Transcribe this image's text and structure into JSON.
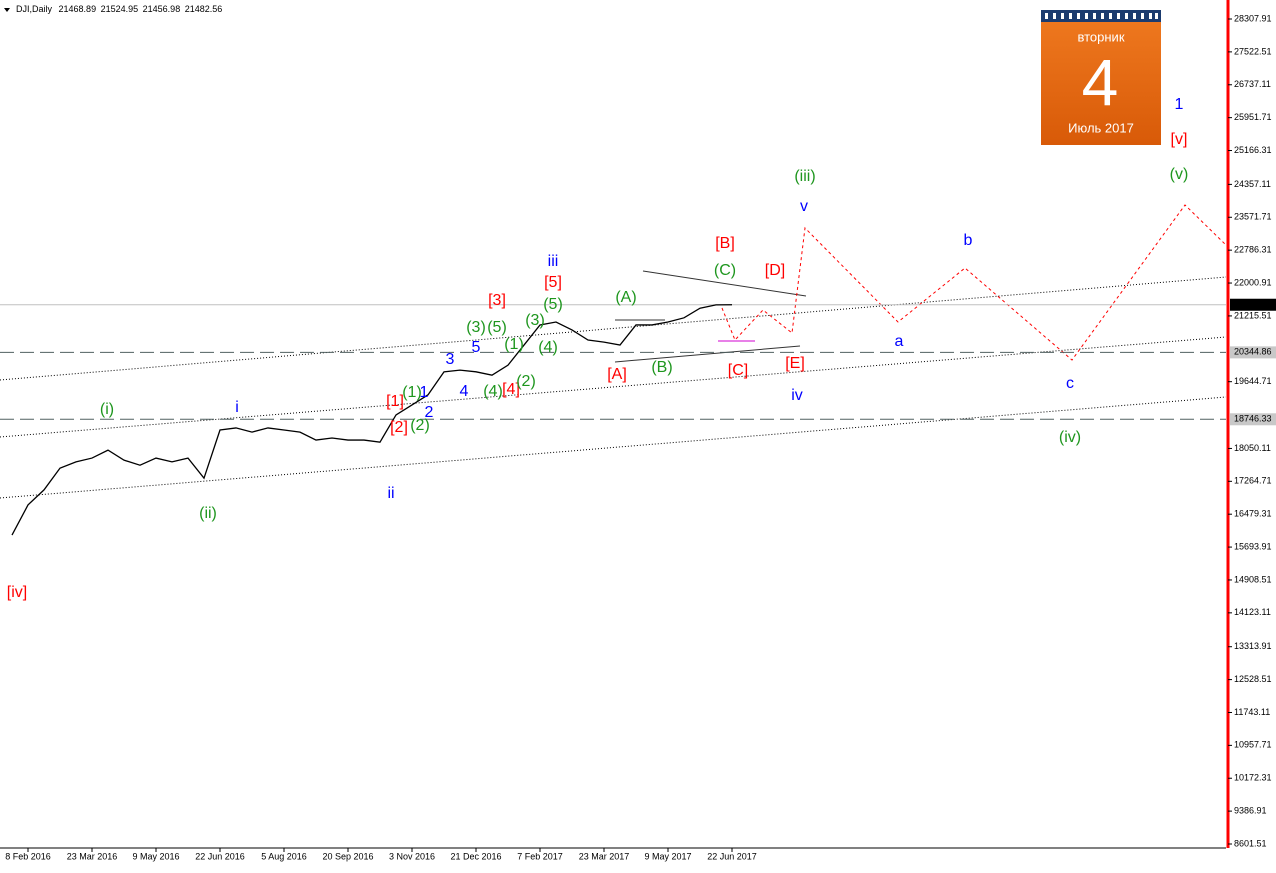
{
  "chart_data": {
    "type": "line",
    "header": {
      "symbol": "DJI,Daily",
      "open": 21468.89,
      "high": 21524.95,
      "low": 21456.98,
      "close": 21482.56
    },
    "categories": [
      null,
      "8 Feb 2016",
      null,
      null,
      null,
      "23 Mar 2016",
      null,
      null,
      null,
      "9 May 2016",
      null,
      null,
      null,
      "22 Jun 2016",
      null,
      null,
      null,
      "5 Aug 2016",
      null,
      null,
      null,
      "20 Sep 2016",
      null,
      null,
      null,
      "3 Nov 2016",
      null,
      null,
      null,
      "21 Dec 2016",
      null,
      null,
      null,
      "7 Feb 2017",
      null,
      null,
      null,
      "23 Mar 2017",
      null,
      null,
      null,
      "9 May 2017",
      null,
      null,
      null,
      "22 Jun 2017"
    ],
    "values": [
      15980,
      16700,
      17060,
      17580,
      17730,
      17820,
      18010,
      17770,
      17650,
      17820,
      17730,
      17820,
      17340,
      18490,
      18540,
      18440,
      18540,
      18490,
      18440,
      18250,
      18300,
      18250,
      18250,
      18200,
      18850,
      19090,
      19330,
      19880,
      19920,
      19880,
      19800,
      20040,
      20520,
      21000,
      21070,
      20880,
      20640,
      20590,
      20520,
      21000,
      21000,
      21070,
      21170,
      21400,
      21480,
      21482.56
    ],
    "color": "#000000",
    "ylim": [
      8506,
      28690
    ],
    "yticks": [
      28307.91,
      27522.51,
      26737.11,
      25951.71,
      25166.31,
      24357.11,
      23571.71,
      22786.31,
      22000.91,
      21215.51,
      19644.71,
      18050.11,
      17264.71,
      16479.31,
      15693.91,
      14908.51,
      14123.11,
      13313.91,
      12528.51,
      11743.11,
      10957.71,
      10172.31,
      9386.91,
      8601.51
    ],
    "levels": [
      {
        "value": 21482.56,
        "style": "current"
      },
      {
        "value": 20344.86,
        "style": "dashed"
      },
      {
        "value": 18746.33,
        "style": "dashed"
      }
    ],
    "annotations": [
      {
        "text": "[iv]",
        "color": "#ff0000"
      },
      {
        "text": "(i)",
        "color": "#1e961e"
      },
      {
        "text": "(ii)",
        "color": "#1e961e"
      },
      {
        "text": "i",
        "color": "#0000ff"
      },
      {
        "text": "ii",
        "color": "#0000ff"
      },
      {
        "text": "[1]",
        "color": "#ff0000"
      },
      {
        "text": "[2]",
        "color": "#ff0000"
      },
      {
        "text": "(1)",
        "color": "#1e961e"
      },
      {
        "text": "1",
        "color": "#0000ff"
      },
      {
        "text": "2",
        "color": "#0000ff"
      },
      {
        "text": "(2)",
        "color": "#1e961e"
      },
      {
        "text": "3",
        "color": "#0000ff"
      },
      {
        "text": "4",
        "color": "#0000ff"
      },
      {
        "text": "5",
        "color": "#0000ff"
      },
      {
        "text": "(3)",
        "color": "#1e961e"
      },
      {
        "text": "(5)",
        "color": "#1e961e"
      },
      {
        "text": "(4)",
        "color": "#1e961e"
      },
      {
        "text": "[4]",
        "color": "#ff0000"
      },
      {
        "text": "(2)",
        "color": "#1e961e"
      },
      {
        "text": "(1)",
        "color": "#1e961e"
      },
      {
        "text": "(4)",
        "color": "#1e961e"
      },
      {
        "text": "(3)",
        "color": "#1e961e"
      },
      {
        "text": "[3]",
        "color": "#ff0000"
      },
      {
        "text": "[5]",
        "color": "#ff0000"
      },
      {
        "text": "iii",
        "color": "#0000ff"
      },
      {
        "text": "(5)",
        "color": "#1e961e"
      },
      {
        "text": "(A)",
        "color": "#1e961e"
      },
      {
        "text": "[A]",
        "color": "#ff0000"
      },
      {
        "text": "(B)",
        "color": "#1e961e"
      },
      {
        "text": "(C)",
        "color": "#1e961e"
      },
      {
        "text": "[B]",
        "color": "#ff0000"
      },
      {
        "text": "[D]",
        "color": "#ff0000"
      },
      {
        "text": "[C]",
        "color": "#ff0000"
      },
      {
        "text": "[E]",
        "color": "#ff0000"
      },
      {
        "text": "(iii)",
        "color": "#1e961e"
      },
      {
        "text": "v",
        "color": "#0000ff"
      },
      {
        "text": "iv",
        "color": "#0000ff"
      },
      {
        "text": "a",
        "color": "#0000ff"
      },
      {
        "text": "b",
        "color": "#0000ff"
      },
      {
        "text": "c",
        "color": "#0000ff"
      },
      {
        "text": "(iv)",
        "color": "#1e961e"
      },
      {
        "text": "1",
        "color": "#0000ff"
      },
      {
        "text": "[v]",
        "color": "#ff0000"
      },
      {
        "text": "(v)",
        "color": "#1e961e"
      }
    ],
    "calendar": {
      "weekday": "вторник",
      "day": 4,
      "month": "Июль 2017"
    }
  }
}
